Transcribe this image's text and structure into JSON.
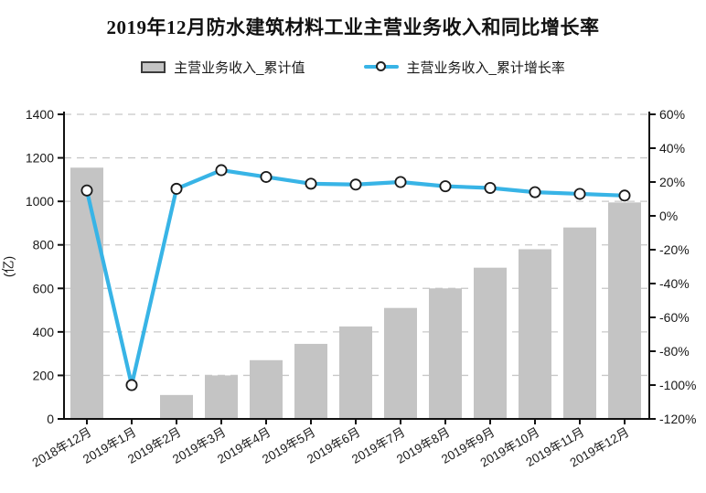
{
  "title": "2019年12月防水建筑材料工业主营业务收入和同比增长率",
  "legend": [
    {
      "label": "主营业务收入_累计值",
      "type": "bar",
      "color": "#c4c4c4"
    },
    {
      "label": "主营业务收入_累计增长率",
      "type": "line",
      "color": "#38b4e6"
    }
  ],
  "chart_data": {
    "type": "bar",
    "subtype": "bar+line dual-axis",
    "title": "2019年12月防水建筑材料工业主营业务收入和同比增长率",
    "categories": [
      "2018年12月",
      "2019年1月",
      "2019年2月",
      "2019年3月",
      "2019年4月",
      "2019年5月",
      "2019年6月",
      "2019年7月",
      "2019年8月",
      "2019年9月",
      "2019年10月",
      "2019年11月",
      "2019年12月"
    ],
    "series": [
      {
        "name": "主营业务收入_累计值",
        "type": "bar",
        "axis": "left",
        "color": "#c4c4c4",
        "values": [
          1155,
          0,
          110,
          200,
          270,
          345,
          425,
          510,
          600,
          695,
          780,
          880,
          995
        ]
      },
      {
        "name": "主营业务收入_累计增长率",
        "type": "line",
        "axis": "right",
        "color": "#38b4e6",
        "values": [
          15,
          -100,
          16,
          27,
          23,
          19,
          18.5,
          20,
          17.5,
          16.5,
          14,
          13,
          12
        ]
      }
    ],
    "left_axis": {
      "label": "(亿)",
      "min": 0,
      "max": 1400,
      "step": 200,
      "tick_labels": [
        "0",
        "200",
        "400",
        "600",
        "800",
        "1000",
        "1200",
        "1400"
      ]
    },
    "right_axis": {
      "label": "",
      "min": -120,
      "max": 60,
      "step": 20,
      "tick_labels": [
        "-120%",
        "-100%",
        "-80%",
        "-60%",
        "-40%",
        "-20%",
        "0%",
        "20%",
        "40%",
        "60%"
      ]
    },
    "grid": "horizontal dashed",
    "legend_position": "top"
  },
  "colors": {
    "bar": "#c4c4c4",
    "line": "#38b4e6",
    "marker_fill": "#ffffff",
    "marker_stroke": "#1a1a1a",
    "grid": "#c8c8c8",
    "axis": "#111111",
    "text": "#1a1a1a"
  }
}
